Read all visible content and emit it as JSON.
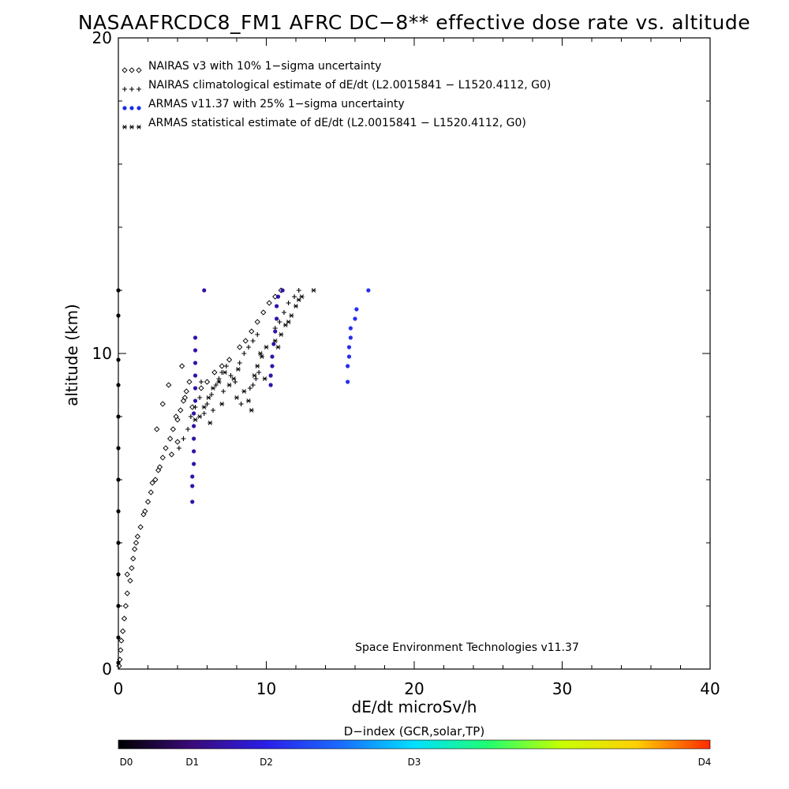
{
  "chart_data": {
    "type": "scatter",
    "title": "NASAAFRCDC8_FM1 AFRC DC−8** effective dose rate vs. altitude",
    "xlabel": "dE/dt microSv/h",
    "ylabel": "altitude (km)",
    "xlim": [
      0,
      40
    ],
    "ylim": [
      0,
      20
    ],
    "xticks": [
      "0",
      "10",
      "20",
      "30",
      "40"
    ],
    "yticks": [
      "0",
      "10",
      "20"
    ],
    "grid": false,
    "legend_position": "top-left",
    "credit": "Space Environment Technologies v11.37",
    "colorbar": {
      "label": "D−index (GCR,solar,TP)",
      "ticks": [
        {
          "label": "D0",
          "value": 0
        },
        {
          "label": "D1",
          "value": 0.25
        },
        {
          "label": "D2",
          "value": 0.5
        },
        {
          "label": "D3",
          "value": 1.0
        },
        {
          "label": "D4",
          "value": 2.0
        }
      ],
      "max": 2.0,
      "colors": [
        "#000000",
        "#3a0a7a",
        "#2a1fe8",
        "#1a6bff",
        "#00e0ff",
        "#20ff70",
        "#c8ff00",
        "#ffd000",
        "#ff2a00"
      ]
    },
    "series": [
      {
        "name": "NAIRAS v3 with 10% 1−sigma uncertainty",
        "marker": "diamond",
        "color": "#000000",
        "points": [
          [
            0.05,
            0.1
          ],
          [
            0.1,
            0.3
          ],
          [
            0.15,
            0.6
          ],
          [
            0.2,
            0.9
          ],
          [
            0.3,
            1.2
          ],
          [
            0.4,
            1.6
          ],
          [
            0.5,
            2.0
          ],
          [
            0.6,
            2.4
          ],
          [
            0.8,
            2.8
          ],
          [
            0.9,
            3.2
          ],
          [
            1.0,
            3.5
          ],
          [
            1.1,
            3.8
          ],
          [
            1.3,
            4.2
          ],
          [
            1.5,
            4.5
          ],
          [
            1.7,
            4.9
          ],
          [
            2.0,
            5.3
          ],
          [
            2.2,
            5.6
          ],
          [
            2.5,
            6.0
          ],
          [
            2.7,
            6.3
          ],
          [
            3.0,
            6.7
          ],
          [
            3.2,
            7.0
          ],
          [
            3.5,
            7.3
          ],
          [
            3.7,
            7.6
          ],
          [
            4.0,
            7.9
          ],
          [
            4.2,
            8.2
          ],
          [
            4.4,
            8.5
          ],
          [
            4.6,
            8.8
          ],
          [
            4.8,
            9.1
          ],
          [
            4.3,
            9.6
          ],
          [
            3.4,
            9.0
          ],
          [
            3.0,
            8.4
          ],
          [
            2.6,
            7.6
          ],
          [
            2.8,
            6.4
          ],
          [
            3.6,
            6.8
          ],
          [
            4.0,
            7.2
          ],
          [
            5.0,
            8.3
          ],
          [
            5.6,
            8.9
          ],
          [
            6.0,
            9.1
          ],
          [
            6.5,
            9.4
          ],
          [
            7.0,
            9.6
          ],
          [
            7.5,
            9.8
          ],
          [
            8.2,
            10.2
          ],
          [
            8.6,
            10.4
          ],
          [
            9.0,
            10.7
          ],
          [
            9.4,
            11.0
          ],
          [
            9.8,
            11.3
          ],
          [
            10.2,
            11.6
          ],
          [
            10.6,
            11.8
          ],
          [
            11.0,
            12.0
          ],
          [
            0.6,
            3.0
          ],
          [
            1.2,
            4.0
          ],
          [
            1.8,
            5.0
          ],
          [
            2.3,
            5.9
          ],
          [
            3.9,
            8.0
          ],
          [
            4.5,
            8.6
          ]
        ]
      },
      {
        "name": "NAIRAS climatological estimate of dE/dt (L2.0015841 − L1520.4112, G0)",
        "marker": "plus",
        "color": "#000000",
        "points": [
          [
            4.9,
            8.0
          ],
          [
            5.2,
            8.3
          ],
          [
            5.5,
            8.6
          ],
          [
            5.8,
            8.1
          ],
          [
            6.0,
            8.4
          ],
          [
            6.3,
            8.7
          ],
          [
            6.6,
            9.0
          ],
          [
            6.8,
            9.2
          ],
          [
            7.0,
            9.4
          ],
          [
            7.3,
            9.6
          ],
          [
            7.6,
            9.3
          ],
          [
            7.9,
            9.1
          ],
          [
            8.2,
            9.7
          ],
          [
            8.5,
            10.0
          ],
          [
            8.8,
            10.2
          ],
          [
            9.1,
            10.4
          ],
          [
            9.4,
            10.6
          ],
          [
            9.1,
            9.0
          ],
          [
            9.3,
            9.2
          ],
          [
            9.5,
            9.4
          ],
          [
            10.6,
            10.8
          ],
          [
            10.9,
            11.0
          ],
          [
            11.2,
            11.3
          ],
          [
            11.5,
            11.6
          ],
          [
            11.9,
            11.8
          ],
          [
            12.2,
            12.0
          ],
          [
            6.4,
            8.2
          ],
          [
            7.1,
            8.8
          ],
          [
            5.6,
            9.1
          ],
          [
            8.3,
            8.4
          ],
          [
            8.9,
            8.9
          ],
          [
            4.7,
            7.6
          ],
          [
            4.4,
            7.3
          ],
          [
            4.1,
            7.0
          ]
        ]
      },
      {
        "name": "ARMAS v11.37 with 25% 1−sigma uncertainty",
        "marker": "dot",
        "points": [
          [
            5.0,
            5.3,
            0.35
          ],
          [
            5.0,
            5.8,
            0.35
          ],
          [
            5.0,
            6.1,
            0.35
          ],
          [
            5.1,
            6.5,
            0.35
          ],
          [
            5.1,
            6.9,
            0.35
          ],
          [
            5.1,
            7.3,
            0.35
          ],
          [
            5.1,
            7.7,
            0.35
          ],
          [
            5.1,
            8.1,
            0.35
          ],
          [
            5.2,
            8.5,
            0.35
          ],
          [
            5.2,
            8.9,
            0.35
          ],
          [
            5.2,
            9.3,
            0.35
          ],
          [
            5.2,
            9.7,
            0.35
          ],
          [
            5.2,
            10.1,
            0.35
          ],
          [
            5.2,
            10.5,
            0.35
          ],
          [
            5.8,
            12.0,
            0.35
          ],
          [
            10.3,
            9.0,
            0.35
          ],
          [
            10.3,
            9.3,
            0.35
          ],
          [
            10.4,
            9.6,
            0.35
          ],
          [
            10.4,
            9.9,
            0.35
          ],
          [
            10.5,
            10.3,
            0.35
          ],
          [
            10.6,
            10.7,
            0.35
          ],
          [
            10.7,
            11.1,
            0.35
          ],
          [
            10.7,
            11.5,
            0.35
          ],
          [
            10.8,
            11.8,
            0.35
          ],
          [
            11.1,
            12.0,
            0.35
          ],
          [
            15.5,
            9.1,
            0.55
          ],
          [
            15.5,
            9.6,
            0.55
          ],
          [
            15.6,
            9.9,
            0.55
          ],
          [
            15.6,
            10.2,
            0.55
          ],
          [
            15.7,
            10.5,
            0.55
          ],
          [
            15.7,
            10.8,
            0.55
          ],
          [
            16.0,
            11.1,
            0.55
          ],
          [
            16.1,
            11.4,
            0.55
          ],
          [
            16.9,
            12.0,
            0.55
          ],
          [
            0.0,
            0.2,
            0.02
          ],
          [
            0.0,
            1.0,
            0.02
          ],
          [
            0.0,
            2.0,
            0.02
          ],
          [
            0.0,
            3.0,
            0.02
          ],
          [
            0.0,
            4.0,
            0.02
          ],
          [
            0.0,
            5.0,
            0.02
          ],
          [
            0.0,
            6.0,
            0.02
          ],
          [
            0.0,
            7.0,
            0.02
          ],
          [
            0.0,
            8.0,
            0.02
          ],
          [
            0.0,
            9.0,
            0.02
          ],
          [
            0.0,
            9.8,
            0.02
          ],
          [
            0.0,
            11.2,
            0.02
          ],
          [
            0.0,
            12.0,
            0.02
          ]
        ]
      },
      {
        "name": "ARMAS statistical estimate of dE/dt (L2.0015841 − L1520.4112, G0)",
        "marker": "asterisk",
        "color": "#000000",
        "points": [
          [
            5.5,
            8.0
          ],
          [
            5.8,
            8.3
          ],
          [
            6.1,
            8.6
          ],
          [
            6.4,
            8.9
          ],
          [
            6.8,
            9.1
          ],
          [
            7.2,
            9.4
          ],
          [
            7.5,
            9.0
          ],
          [
            7.8,
            9.2
          ],
          [
            8.1,
            9.5
          ],
          [
            8.5,
            8.8
          ],
          [
            8.8,
            8.5
          ],
          [
            9.0,
            8.2
          ],
          [
            9.2,
            9.3
          ],
          [
            9.4,
            9.6
          ],
          [
            9.7,
            9.9
          ],
          [
            10.0,
            10.2
          ],
          [
            10.6,
            10.4
          ],
          [
            11.0,
            10.6
          ],
          [
            11.3,
            10.9
          ],
          [
            11.7,
            11.2
          ],
          [
            12.0,
            11.5
          ],
          [
            12.4,
            11.8
          ],
          [
            13.2,
            12.0
          ],
          [
            6.2,
            7.8
          ],
          [
            7.0,
            8.4
          ],
          [
            8.0,
            8.6
          ],
          [
            9.6,
            10.0
          ],
          [
            11.5,
            11.0
          ],
          [
            5.2,
            7.9
          ],
          [
            9.9,
            9.2
          ],
          [
            12.2,
            11.7
          ],
          [
            10.8,
            10.2
          ]
        ]
      }
    ]
  }
}
